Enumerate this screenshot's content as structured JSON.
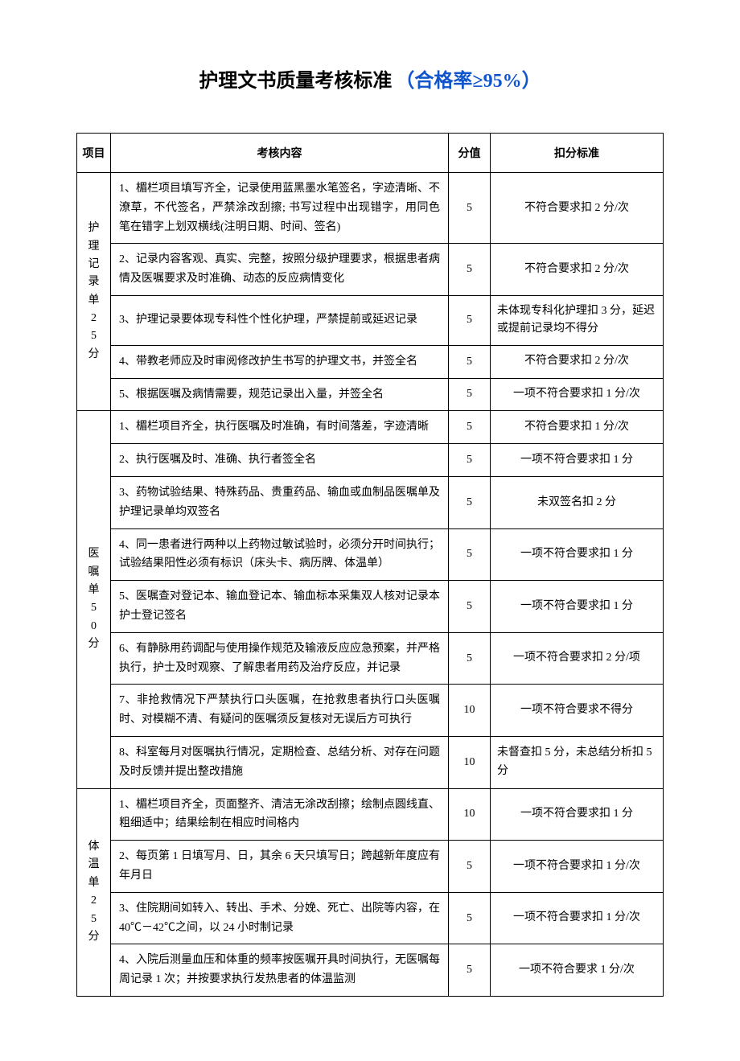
{
  "title": {
    "main": "护理文书质量考核标准",
    "sub": "（合格率≥95%）"
  },
  "headers": {
    "category": "项目",
    "content": "考核内容",
    "score": "分值",
    "deduction": "扣分标准"
  },
  "sections": [
    {
      "category": "护理记录单25分",
      "rows": [
        {
          "content": "1、楣栏项目填写齐全，记录使用蓝黑墨水笔签名，字迹清晰、不潦草，不代签名，严禁涂改刮擦; 书写过程中出现错字，用同色笔在错字上划双横线(注明日期、时间、签名)",
          "score": "5",
          "deduction": "不符合要求扣 2 分/次",
          "deduction_align": "center"
        },
        {
          "content": "2、记录内容客观、真实、完整，按照分级护理要求，根据患者病情及医嘱要求及时准确、动态的反应病情变化",
          "score": "5",
          "deduction": "不符合要求扣 2 分/次",
          "deduction_align": "center"
        },
        {
          "content": "3、护理记录要体现专科性个性化护理，严禁提前或延迟记录",
          "score": "5",
          "deduction": "未体现专科化护理扣 3 分，延迟或提前记录均不得分",
          "deduction_align": "left"
        },
        {
          "content": "4、带教老师应及时审阅修改护生书写的护理文书，并签全名",
          "score": "5",
          "deduction": "不符合要求扣 2 分/次",
          "deduction_align": "center"
        },
        {
          "content": "5、根据医嘱及病情需要，规范记录出入量，并签全名",
          "score": "5",
          "deduction": "一项不符合要求扣 1 分/次",
          "deduction_align": "center"
        }
      ]
    },
    {
      "category": "医嘱单50分",
      "rows": [
        {
          "content": "1、楣栏项目齐全，执行医嘱及时准确，有时间落差，字迹清晰",
          "score": "5",
          "deduction": "不符合要求扣 1 分/次",
          "deduction_align": "center"
        },
        {
          "content": "2、执行医嘱及时、准确、执行者签全名",
          "score": "5",
          "deduction": "一项不符合要求扣 1 分",
          "deduction_align": "center"
        },
        {
          "content": "3、药物试验结果、特殊药品、贵重药品、输血或血制品医嘱单及护理记录单均双签名",
          "score": "5",
          "deduction": "未双签名扣 2 分",
          "deduction_align": "center"
        },
        {
          "content": "4、同一患者进行两种以上药物过敏试验时，必须分开时间执行；试验结果阳性必须有标识（床头卡、病历牌、体温单）",
          "score": "5",
          "deduction": "一项不符合要求扣 1 分",
          "deduction_align": "center"
        },
        {
          "content": "5、医嘱查对登记本、输血登记本、输血标本采集双人核对记录本护士登记签名",
          "score": "5",
          "deduction": "一项不符合要求扣 1 分",
          "deduction_align": "center"
        },
        {
          "content": "6、有静脉用药调配与使用操作规范及输液反应应急预案，并严格执行，护士及时观察、了解患者用药及治疗反应，并记录",
          "score": "5",
          "deduction": "一项不符合要求扣 2 分/项",
          "deduction_align": "center"
        },
        {
          "content": "7、非抢救情况下严禁执行口头医嘱，在抢救患者执行口头医嘱时、对模糊不清、有疑问的医嘱须反复核对无误后方可执行",
          "score": "10",
          "deduction": "一项不符合要求不得分",
          "deduction_align": "center"
        },
        {
          "content": "8、科室每月对医嘱执行情况，定期检查、总结分析、对存在问题及时反馈并提出整改措施",
          "score": "10",
          "deduction": "未督查扣 5 分，未总结分析扣 5 分",
          "deduction_align": "left"
        }
      ]
    },
    {
      "category": "体温单25分",
      "rows": [
        {
          "content": "1、楣栏项目齐全，页面整齐、清洁无涂改刮擦；绘制点圆线直、粗细适中；结果绘制在相应时间格内",
          "score": "10",
          "deduction": "一项不符合要求扣 1 分",
          "deduction_align": "center"
        },
        {
          "content": "2、每页第 1 日填写月、日，其余 6 天只填写日；跨越新年度应有年月日",
          "score": "5",
          "deduction": "一项不符合要求扣 1 分/次",
          "deduction_align": "center"
        },
        {
          "content": "3、住院期间如转入、转出、手术、分娩、死亡、出院等内容，在 40℃－42℃之间，以 24 小时制记录",
          "score": "5",
          "deduction": "一项不符合要求扣 1 分/次",
          "deduction_align": "center"
        },
        {
          "content": "4、入院后测量血压和体重的频率按医嘱开具时间执行，无医嘱每周记录 1 次；并按要求执行发热患者的体温监测",
          "score": "5",
          "deduction": "一项不符合要求 1 分/次",
          "deduction_align": "center"
        }
      ]
    }
  ]
}
